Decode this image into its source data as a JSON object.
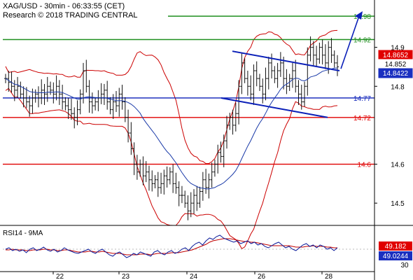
{
  "header": {
    "line1": "XAG/USD - 30min - 06:33:55 (CET)",
    "line2": "Research © 2018 TRADING CENTRAL"
  },
  "colors": {
    "bar": "#111111",
    "bollinger": "#cc0000",
    "ma": "#1a3aa8",
    "support_resistance_blue": "#0a1fb8",
    "red_level": "#e00000",
    "green_level": "#1f8f1f",
    "badge_red": "#e00000",
    "badge_blue": "#1a2fc0",
    "rsi": "#0a1a9a",
    "rsi_ma": "#c00000",
    "arrow": "#0a1fb8"
  },
  "chart_data": [
    {
      "type": "ohlc",
      "title": "XAG/USD - 30min - 06:33:55 (CET)",
      "y_ticks": [
        "14.5",
        "14.6",
        "14.8",
        "14.9"
      ],
      "x_ticks": [
        "22",
        "23",
        "24",
        "26",
        "28"
      ],
      "ylim": [
        14.45,
        15.0
      ],
      "levels": [
        {
          "value": 14.98,
          "label": "14.98",
          "color": "green"
        },
        {
          "value": 14.92,
          "label": "14.92",
          "color": "green"
        },
        {
          "value": 14.77,
          "label": "14.77",
          "color": "blue"
        },
        {
          "value": 14.72,
          "label": "14.72",
          "color": "red"
        },
        {
          "value": 14.6,
          "label": "14.6",
          "color": "red"
        }
      ],
      "price_badges": [
        {
          "value": 14.8652,
          "label": "14.8652",
          "color": "red"
        },
        {
          "value": 14.852,
          "label": "14.852",
          "color": "white"
        },
        {
          "value": 14.8422,
          "label": "14.8422",
          "color": "blue"
        }
      ],
      "close": [
        14.82,
        14.81,
        14.8,
        14.79,
        14.8,
        14.78,
        14.77,
        14.76,
        14.75,
        14.77,
        14.78,
        14.77,
        14.79,
        14.78,
        14.8,
        14.79,
        14.78,
        14.8,
        14.78,
        14.76,
        14.75,
        14.74,
        14.73,
        14.72,
        14.74,
        14.78,
        14.84,
        14.8,
        14.76,
        14.75,
        14.76,
        14.77,
        14.78,
        14.79,
        14.76,
        14.74,
        14.76,
        14.75,
        14.78,
        14.76,
        14.72,
        14.68,
        14.64,
        14.6,
        14.58,
        14.6,
        14.57,
        14.58,
        14.56,
        14.55,
        14.56,
        14.54,
        14.55,
        14.57,
        14.56,
        14.58,
        14.55,
        14.54,
        14.52,
        14.52,
        14.5,
        14.48,
        14.5,
        14.52,
        14.5,
        14.53,
        14.56,
        14.54,
        14.56,
        14.58,
        14.6,
        14.63,
        14.62,
        14.66,
        14.7,
        14.72,
        14.7,
        14.73,
        14.8,
        14.86,
        14.82,
        14.8,
        14.78,
        14.84,
        14.82,
        14.8,
        14.78,
        14.82,
        14.86,
        14.84,
        14.82,
        14.84,
        14.86,
        14.82,
        14.8,
        14.82,
        14.84,
        14.8,
        14.78,
        14.76,
        14.8,
        14.88,
        14.9,
        14.88,
        14.87,
        14.9,
        14.88,
        14.86,
        14.9,
        14.88,
        14.86,
        14.85
      ]
    },
    {
      "type": "line",
      "title": "RSI14 - 9MA",
      "y_ticks": [
        "30"
      ],
      "ylim": [
        20,
        80
      ],
      "price_badges": [
        {
          "value": 49.182,
          "label": "49.182",
          "color": "red"
        },
        {
          "value": 49.0244,
          "label": "49.0244",
          "color": "blue"
        }
      ],
      "rsi": [
        50,
        52,
        48,
        50,
        47,
        49,
        45,
        50,
        52,
        48,
        50,
        53,
        49,
        47,
        50,
        46,
        48,
        52,
        49,
        47,
        45,
        44,
        46,
        48,
        50,
        46,
        44,
        48,
        50,
        46,
        42,
        40,
        44,
        46,
        42,
        38,
        40,
        44,
        42,
        46,
        44,
        42,
        40,
        46,
        48,
        44,
        42,
        46,
        48,
        44,
        46,
        50,
        52,
        48,
        54,
        58,
        60,
        56,
        62,
        66,
        64,
        68,
        70,
        66,
        64,
        62,
        60,
        62,
        58,
        60,
        62,
        58,
        60,
        56,
        58,
        54,
        52,
        55,
        58,
        60,
        56,
        52,
        54,
        50,
        48,
        52,
        56,
        58,
        54,
        56,
        52,
        56,
        54,
        50,
        52,
        48,
        52
      ],
      "rsi_ma": [
        49,
        49,
        50,
        49,
        49,
        49,
        48,
        48,
        49,
        49,
        49,
        50,
        50,
        49,
        49,
        48,
        48,
        49,
        49,
        48,
        47,
        46,
        46,
        46,
        47,
        47,
        46,
        46,
        47,
        46,
        45,
        44,
        44,
        44,
        43,
        42,
        42,
        42,
        42,
        43,
        43,
        43,
        42,
        43,
        44,
        44,
        44,
        44,
        45,
        45,
        45,
        46,
        47,
        48,
        49,
        51,
        53,
        55,
        57,
        60,
        62,
        63,
        64,
        65,
        65,
        65,
        64,
        63,
        62,
        61,
        61,
        60,
        60,
        59,
        58,
        57,
        56,
        55,
        55,
        55,
        55,
        55,
        55,
        54,
        53,
        53,
        53,
        54,
        54,
        55,
        54,
        54,
        54,
        53,
        53,
        52,
        52
      ]
    }
  ]
}
